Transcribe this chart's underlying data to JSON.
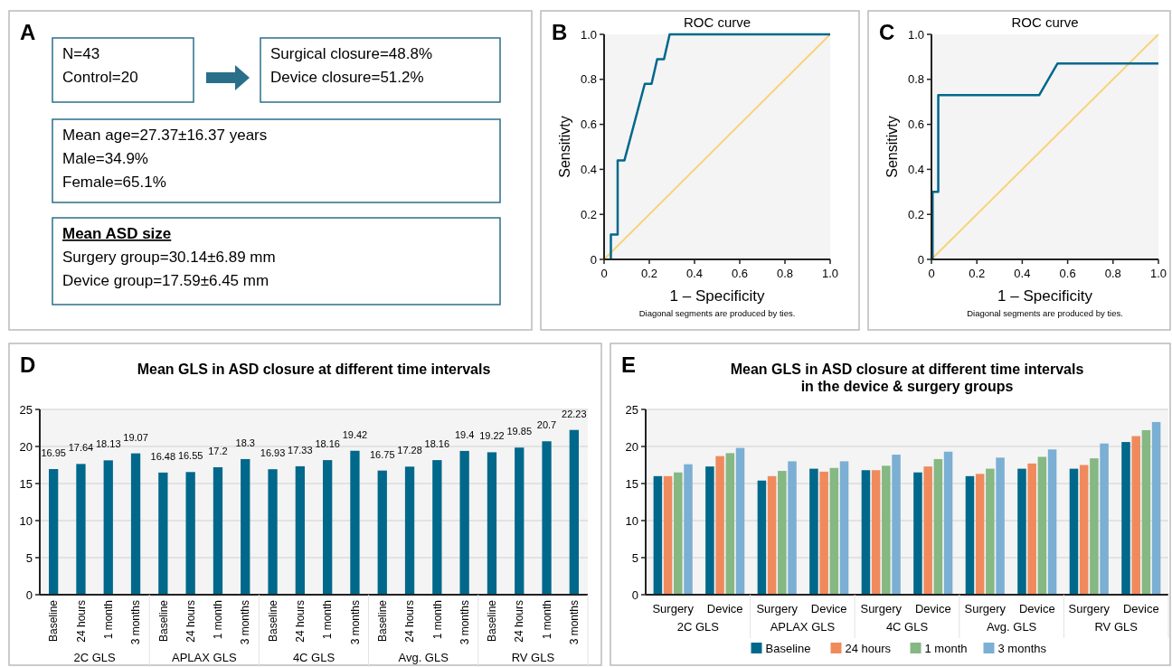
{
  "chart_data": [
    {
      "type": "other",
      "annotations": [
        "A",
        "N=43",
        "Control=20",
        "Surgical closure=48.8%",
        "Device closure=51.2%",
        "Mean age=27.37±16.37 years",
        "Male=34.9%",
        "Female=65.1%",
        "Mean ASD size",
        "Surgery group=30.14±6.89 mm",
        "Device group=17.59±6.45 mm"
      ]
    },
    {
      "type": "line",
      "title": "ROC curve",
      "xlabel": "1 – Specificity",
      "ylabel": "Sensitivty",
      "annotations": [
        "B",
        "Diagonal segments are produced by ties."
      ],
      "xlim": [
        0,
        1
      ],
      "ylim": [
        0,
        1
      ],
      "xticks": [
        0,
        0.2,
        0.4,
        0.6,
        0.8,
        {
          "value": 1,
          "label": "1.0"
        }
      ],
      "yticks": [
        0,
        0.2,
        0.4,
        0.6,
        0.8,
        {
          "value": 1,
          "label": "1.0"
        }
      ],
      "series": [
        {
          "color": "#f9d27a",
          "x": [
            0,
            1
          ],
          "values": [
            0,
            1
          ]
        },
        {
          "color": "#00688b",
          "x": [
            0.03,
            0.03,
            0.06,
            0.06,
            0.09,
            0.18,
            0.21,
            0.235,
            0.265,
            0.29,
            1
          ],
          "values": [
            0,
            0.11,
            0.11,
            0.44,
            0.44,
            0.78,
            0.78,
            0.89,
            0.89,
            1,
            1
          ]
        }
      ]
    },
    {
      "type": "line",
      "title": "ROC curve",
      "xlabel": "1 – Specificity",
      "ylabel": "Sensitivty",
      "annotations": [
        "C",
        "Diagonal segments are produced by ties."
      ],
      "xlim": [
        0,
        1
      ],
      "ylim": [
        0,
        1
      ],
      "xticks": [
        0,
        0.2,
        0.4,
        0.6,
        0.8,
        {
          "value": 1,
          "label": "1.0"
        }
      ],
      "yticks": [
        0,
        0.2,
        0.4,
        0.6,
        0.8,
        {
          "value": 1,
          "label": "1.0"
        }
      ],
      "series": [
        {
          "color": "#f9d27a",
          "x": [
            0,
            1
          ],
          "values": [
            0,
            1
          ]
        },
        {
          "color": "#00688b",
          "x": [
            0.005,
            0.005,
            0.03,
            0.03,
            0.475,
            0.555,
            1
          ],
          "values": [
            0,
            0.3,
            0.3,
            0.73,
            0.73,
            0.87,
            0.87
          ]
        }
      ]
    },
    {
      "type": "bar",
      "title": "Mean GLS in ASD closure at different time intervals",
      "annotations": [
        "D",
        "2C GLS",
        "APLAX GLS",
        "4C GLS",
        "Avg. GLS",
        "RV GLS"
      ],
      "categories": [
        "Baseline",
        "24 hours",
        "1 month",
        "3 months",
        "Baseline",
        "24 hours",
        "1 month",
        "3 months",
        "Baseline",
        "24 hours",
        "1 month",
        "3 months",
        "Baseline",
        "24 hours",
        "1 month",
        "3 months",
        "Baseline",
        "24 hours",
        "1 month",
        "3 months"
      ],
      "values": [
        16.95,
        17.64,
        18.13,
        19.07,
        16.48,
        16.55,
        17.2,
        18.3,
        16.93,
        17.33,
        18.16,
        19.42,
        16.75,
        17.28,
        18.16,
        19.4,
        19.22,
        19.85,
        20.7,
        22.23
      ],
      "color": "#00688b",
      "data_labels": true,
      "ylim": [
        0,
        25
      ],
      "yticks": [
        0,
        5,
        10,
        15,
        20,
        25
      ],
      "grid": "y"
    },
    {
      "type": "bar",
      "title": "Mean GLS in ASD closure at different time intervals\nin the device & surgery groups",
      "annotations": [
        "E",
        "2C GLS",
        "APLAX GLS",
        "4C GLS",
        "Avg. GLS",
        "RV GLS"
      ],
      "categories": [
        "Surgery",
        "Device",
        "Surgery",
        "Device",
        "Surgery",
        "Device",
        "Surgery",
        "Device",
        "Surgery",
        "Device"
      ],
      "ylim": [
        0,
        25
      ],
      "yticks": [
        0,
        5,
        10,
        15,
        20,
        25
      ],
      "grid": "y",
      "legend": "bottom",
      "series": [
        {
          "name": "Baseline",
          "color": "#00688b",
          "values": [
            16.0,
            17.3,
            15.4,
            17.0,
            16.8,
            16.5,
            16.0,
            17.0,
            17.0,
            20.6
          ]
        },
        {
          "name": "24 hours",
          "color": "#f08a5d",
          "values": [
            16.0,
            18.7,
            16.0,
            16.6,
            16.8,
            17.3,
            16.3,
            17.7,
            17.5,
            21.4
          ]
        },
        {
          "name": "1 month",
          "color": "#85b883",
          "values": [
            16.5,
            19.1,
            16.7,
            17.1,
            17.4,
            18.3,
            17.0,
            18.6,
            18.4,
            22.2
          ]
        },
        {
          "name": "3 months",
          "color": "#7bafd4",
          "values": [
            17.6,
            19.8,
            18.0,
            18.0,
            18.9,
            19.3,
            18.5,
            19.6,
            20.4,
            23.3
          ]
        }
      ]
    }
  ]
}
